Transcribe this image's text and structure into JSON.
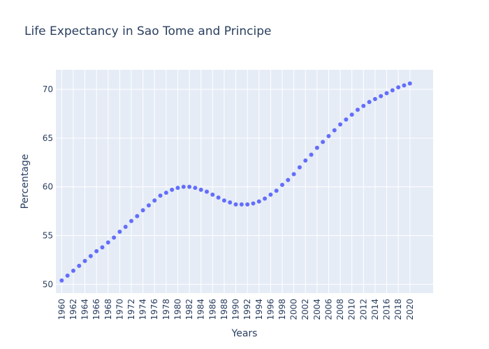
{
  "chart_data": {
    "type": "scatter",
    "title": "Life Expectancy in Sao Tome and Principe",
    "xlabel": "Years",
    "ylabel": "Percentage",
    "xlim": [
      1959,
      2024
    ],
    "ylim": [
      49.1,
      72.0
    ],
    "yticks": [
      50,
      55,
      60,
      65,
      70
    ],
    "xticks": [
      1960,
      1962,
      1964,
      1966,
      1968,
      1970,
      1972,
      1974,
      1976,
      1978,
      1980,
      1982,
      1984,
      1986,
      1988,
      1990,
      1992,
      1994,
      1996,
      1998,
      2000,
      2002,
      2004,
      2006,
      2008,
      2010,
      2012,
      2014,
      2016,
      2018,
      2020
    ],
    "grid": true,
    "marker_color": "#636efa",
    "plot_bg": "#e5ecf6",
    "series": [
      {
        "x": [
          1960,
          1961,
          1962,
          1963,
          1964,
          1965,
          1966,
          1967,
          1968,
          1969,
          1970,
          1971,
          1972,
          1973,
          1974,
          1975,
          1976,
          1977,
          1978,
          1979,
          1980,
          1981,
          1982,
          1983,
          1984,
          1985,
          1986,
          1987,
          1988,
          1989,
          1990,
          1991,
          1992,
          1993,
          1994,
          1995,
          1996,
          1997,
          1998,
          1999,
          2000,
          2001,
          2002,
          2003,
          2004,
          2005,
          2006,
          2007,
          2008,
          2009,
          2010,
          2011,
          2012,
          2013,
          2014,
          2015,
          2016,
          2017,
          2018,
          2019,
          2020
        ],
        "y": [
          50.4,
          50.9,
          51.4,
          51.9,
          52.4,
          52.9,
          53.4,
          53.8,
          54.3,
          54.8,
          55.4,
          55.9,
          56.5,
          57.0,
          57.6,
          58.1,
          58.6,
          59.1,
          59.4,
          59.7,
          59.9,
          60.0,
          60.0,
          59.9,
          59.7,
          59.5,
          59.2,
          58.9,
          58.6,
          58.4,
          58.2,
          58.2,
          58.2,
          58.3,
          58.5,
          58.8,
          59.2,
          59.6,
          60.2,
          60.7,
          61.3,
          62.0,
          62.7,
          63.3,
          64.0,
          64.6,
          65.2,
          65.8,
          66.4,
          66.9,
          67.4,
          67.9,
          68.3,
          68.7,
          69.0,
          69.3,
          69.6,
          69.9,
          70.2,
          70.4,
          70.6
        ]
      }
    ]
  }
}
